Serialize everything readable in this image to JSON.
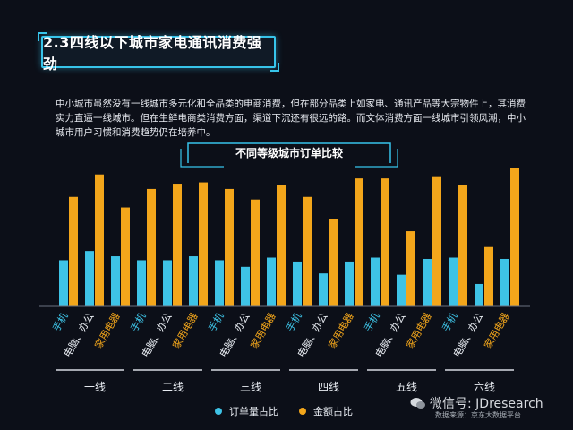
{
  "page": {
    "title": "2.3四线以下城市家电通讯消费强劲",
    "description": "中小城市虽然没有一线城市多元化和全品类的电商消费，但在部分品类上如家电、通讯产品等大宗物件上，其消费实力直逼一线城市。但在生鲜电商类消费方面，渠道下沉还有很远的路。而文体消费方面一线城市引领风潮，中小城市用户习惯和消费趋势仍在培养中。",
    "watermark": "微信号: JDresearch",
    "source": "数据来源：京东大数据平台"
  },
  "colors": {
    "series1": "#3ec3e6",
    "series2": "#f3a61b",
    "accent": "#37c4ea",
    "label_blue": "#3ec3e6",
    "label_orange": "#f3a61b"
  },
  "chart_data": {
    "type": "bar",
    "title": "不同等级城市订单比较",
    "groups": [
      "一线",
      "二线",
      "三线",
      "四线",
      "五线",
      "六线"
    ],
    "categories": [
      "手机",
      "电脑、办公",
      "家用电器"
    ],
    "series": [
      {
        "name": "订单量占比",
        "values": [
          [
            35,
            42,
            38
          ],
          [
            35,
            35,
            38
          ],
          [
            35,
            30,
            37
          ],
          [
            34,
            25,
            34
          ],
          [
            37,
            24,
            36
          ],
          [
            37,
            17,
            36
          ]
        ]
      },
      {
        "name": "金额占比",
        "values": [
          [
            83,
            100,
            75
          ],
          [
            89,
            93,
            94
          ],
          [
            89,
            81,
            92
          ],
          [
            83,
            66,
            97
          ],
          [
            97,
            57,
            98
          ],
          [
            92,
            45,
            105
          ]
        ]
      }
    ],
    "ylim": [
      0,
      110
    ],
    "grid": false,
    "legend_position": "bottom"
  },
  "legend": {
    "items": [
      "订单量占比",
      "金额占比"
    ]
  }
}
